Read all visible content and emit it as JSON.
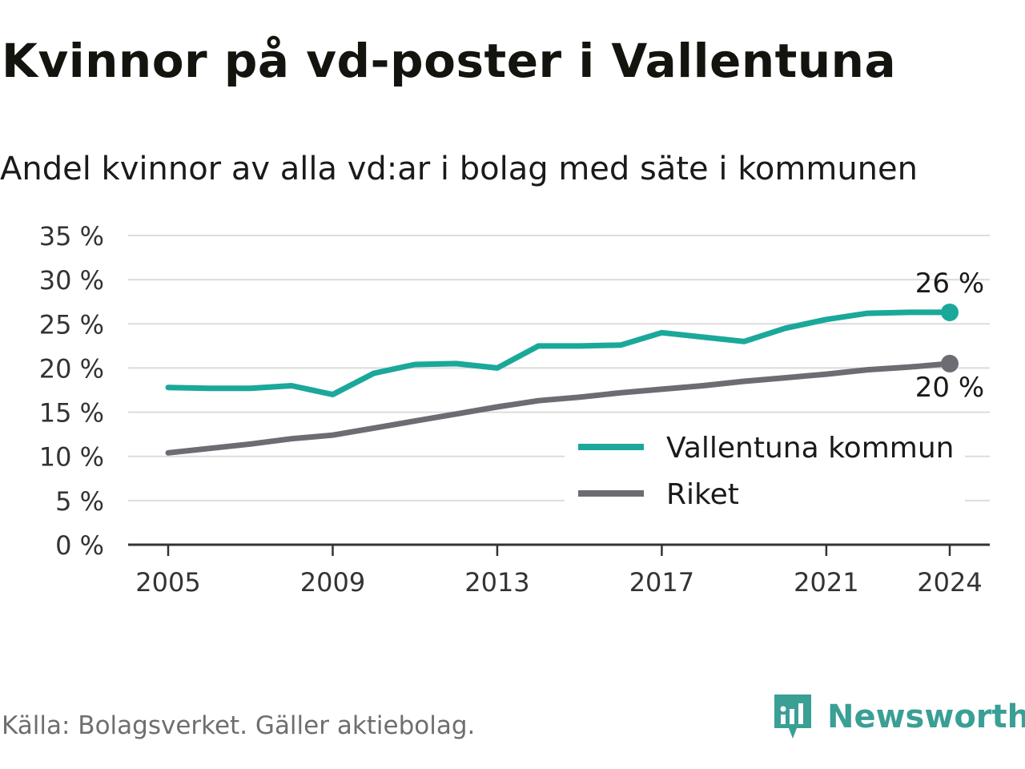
{
  "title": "Kvinnor på vd-poster i Vallentuna",
  "subtitle": "Andel kvinnor av alla vd:ar i bolag med säte i kommunen",
  "source": "Källa: Bolagsverket. Gäller aktiebolag.",
  "brand": {
    "name": "Newsworthy",
    "icon": "newsworthy-logo-icon",
    "color": "#3a9f95"
  },
  "chart_data": {
    "type": "line",
    "x": [
      2005,
      2006,
      2007,
      2008,
      2009,
      2010,
      2011,
      2012,
      2013,
      2014,
      2015,
      2016,
      2017,
      2018,
      2019,
      2020,
      2021,
      2022,
      2023,
      2024
    ],
    "x_ticks": [
      "2005",
      "2009",
      "2013",
      "2017",
      "2021",
      "2024"
    ],
    "y_ticks": [
      "0 %",
      "5 %",
      "10 %",
      "15 %",
      "20 %",
      "25 %",
      "30 %",
      "35 %"
    ],
    "ylim": [
      0,
      35
    ],
    "grid": true,
    "legend_position": "bottom-right",
    "series": [
      {
        "name": "Vallentuna kommun",
        "color": "#1ba89b",
        "values": [
          17.8,
          17.7,
          17.7,
          18.0,
          17.0,
          19.4,
          20.4,
          20.5,
          20.0,
          22.5,
          22.5,
          22.6,
          24.0,
          23.5,
          23.0,
          24.5,
          25.5,
          26.2,
          26.3,
          26.3
        ],
        "end_label": "26 %"
      },
      {
        "name": "Riket",
        "color": "#6d6c73",
        "values": [
          10.4,
          10.9,
          11.4,
          12.0,
          12.4,
          13.2,
          14.0,
          14.8,
          15.6,
          16.3,
          16.7,
          17.2,
          17.6,
          18.0,
          18.5,
          18.9,
          19.3,
          19.8,
          20.1,
          20.5
        ],
        "end_label": "20 %"
      }
    ]
  }
}
